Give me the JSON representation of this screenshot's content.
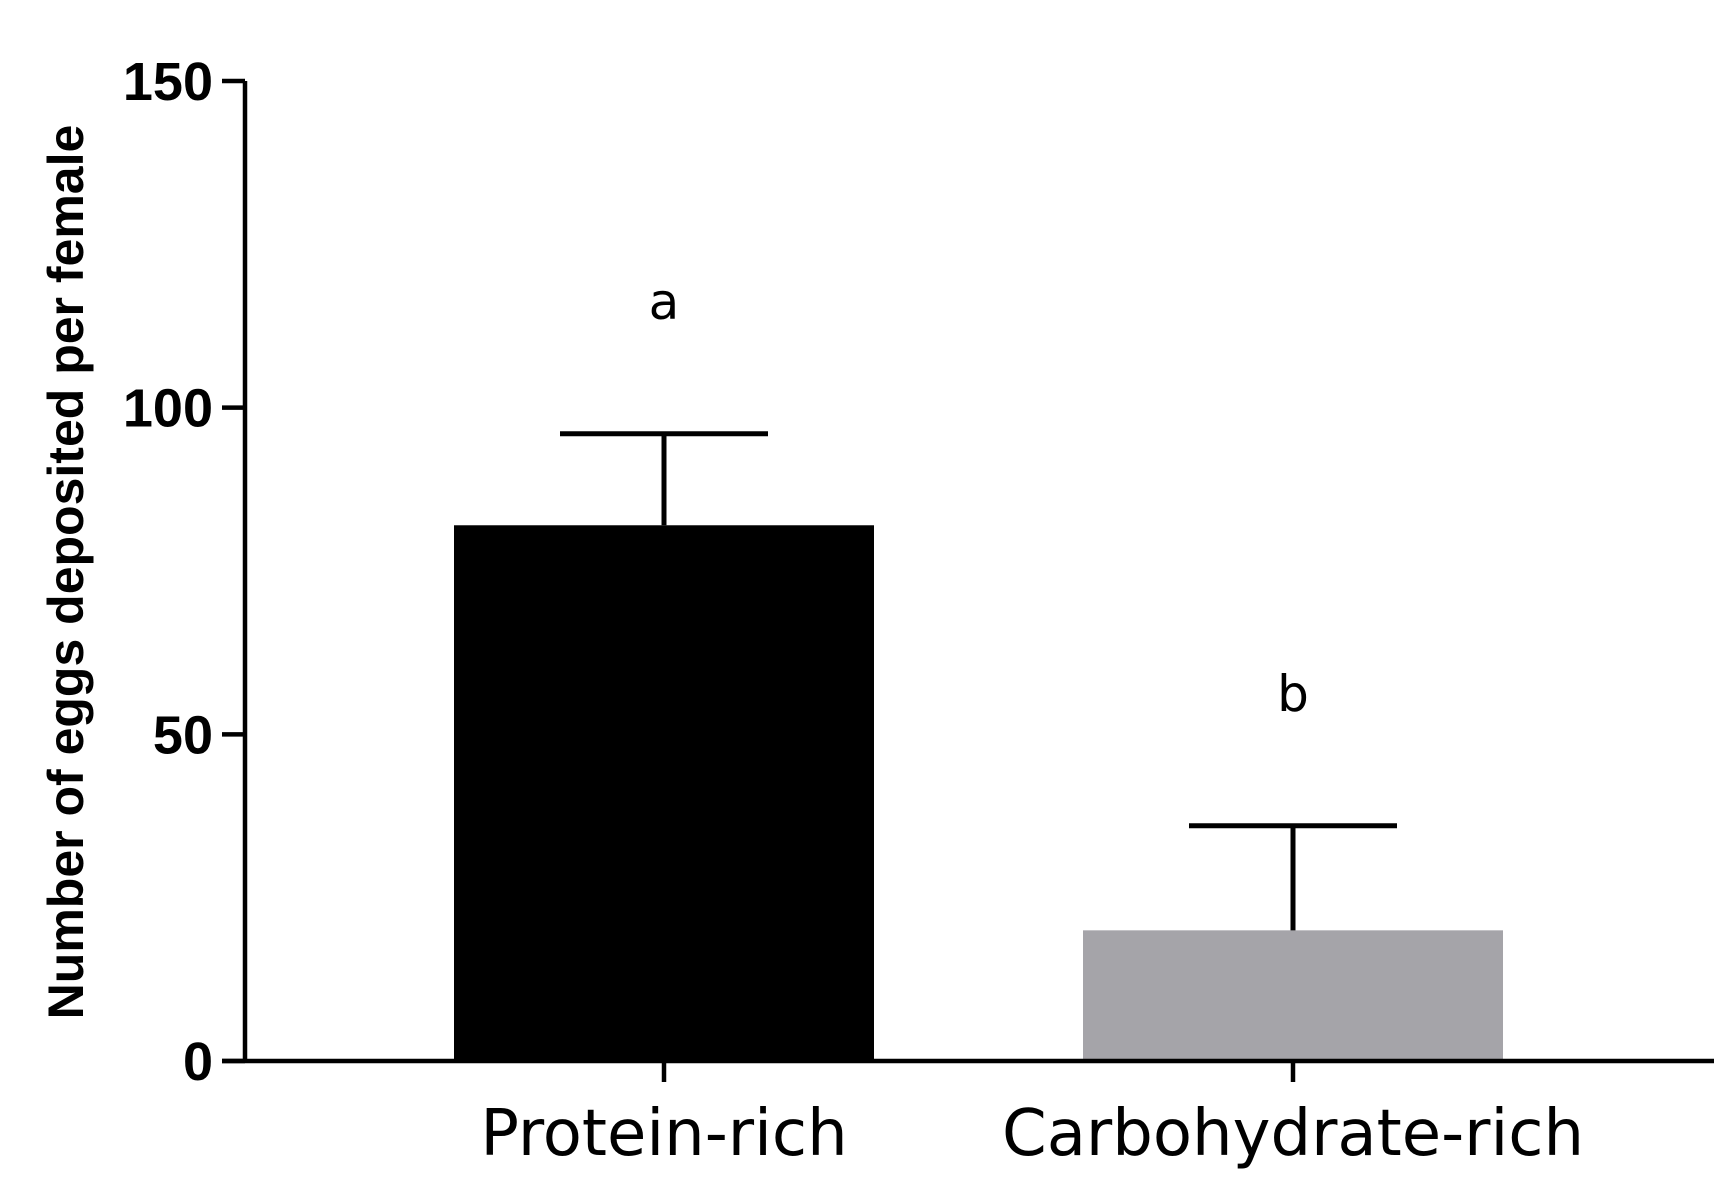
{
  "chart_data": {
    "type": "bar",
    "title": "",
    "xlabel": "",
    "ylabel": "Number of eggs deposited per female",
    "ylim": [
      0,
      150
    ],
    "yticks": [
      0,
      50,
      100,
      150
    ],
    "categories": [
      "Protein-rich",
      "Carbohydrate-rich"
    ],
    "values": [
      82,
      20
    ],
    "errors": [
      14,
      16
    ],
    "significance_labels": [
      "a",
      "b"
    ],
    "colors": [
      "#000000",
      "#a5a4a9"
    ],
    "grid": false,
    "legend": "none"
  }
}
